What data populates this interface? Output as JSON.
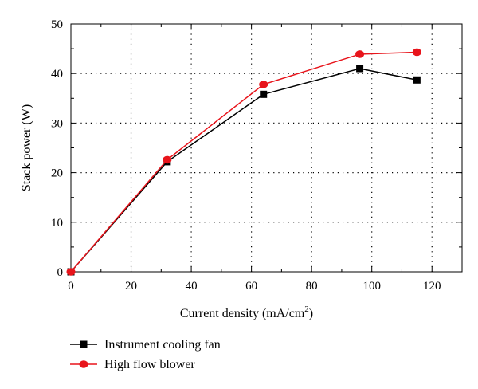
{
  "chart_data": {
    "type": "line",
    "xlabel": "Current density (mA/cm",
    "xlabel_sup": "2",
    "xlabel_suffix": ")",
    "ylabel": "Stack power (W)",
    "xlim": [
      0,
      130
    ],
    "ylim": [
      0,
      50
    ],
    "xticks": [
      0,
      20,
      40,
      60,
      80,
      100,
      120
    ],
    "yticks": [
      0,
      10,
      20,
      30,
      40,
      50
    ],
    "grid": true,
    "legend_position": "bottom-left",
    "series": [
      {
        "name": "Instrument cooling fan",
        "color": "#000000",
        "marker": "square",
        "x": [
          0,
          32,
          64,
          96,
          115
        ],
        "y": [
          0,
          22.2,
          35.8,
          41.0,
          38.7
        ]
      },
      {
        "name": "High flow blower",
        "color": "#e8141b",
        "marker": "circle",
        "x": [
          0,
          32,
          64,
          96,
          115
        ],
        "y": [
          0,
          22.6,
          37.8,
          43.9,
          44.3
        ]
      }
    ]
  }
}
